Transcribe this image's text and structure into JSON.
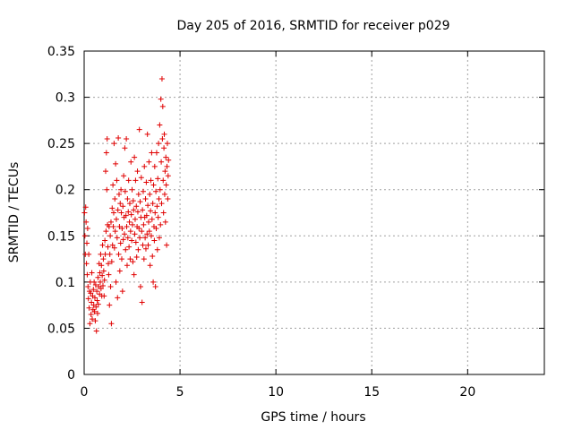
{
  "chart_data": {
    "type": "scatter",
    "title": "Day 205 of 2016, SRMTID for receiver p029",
    "xlabel": "GPS time / hours",
    "ylabel": "SRMTID / TECUs",
    "xlim": [
      0,
      24
    ],
    "ylim": [
      0,
      0.35
    ],
    "grid": true,
    "marker": "+",
    "color": "#e00000",
    "xticks": [
      0,
      5,
      10,
      15,
      20
    ],
    "xtick_labels": [
      "0",
      "5",
      "10",
      "15",
      "20"
    ],
    "yticks": [
      0,
      0.05,
      0.1,
      0.15,
      0.2,
      0.25,
      0.3,
      0.35
    ],
    "ytick_labels": [
      "0",
      "0.05",
      "0.1",
      "0.15",
      "0.2",
      "0.25",
      "0.3",
      "0.35"
    ],
    "series": [
      {
        "name": "SRMTID",
        "points": [
          [
            0.02,
            0.175
          ],
          [
            0.04,
            0.15
          ],
          [
            0.06,
            0.13
          ],
          [
            0.08,
            0.181
          ],
          [
            0.1,
            0.165
          ],
          [
            0.12,
            0.12
          ],
          [
            0.14,
            0.142
          ],
          [
            0.16,
            0.108
          ],
          [
            0.18,
            0.158
          ],
          [
            0.2,
            0.095
          ],
          [
            0.22,
            0.082
          ],
          [
            0.24,
            0.13
          ],
          [
            0.26,
            0.072
          ],
          [
            0.28,
            0.09
          ],
          [
            0.3,
            0.055
          ],
          [
            0.32,
            0.1
          ],
          [
            0.34,
            0.088
          ],
          [
            0.36,
            0.065
          ],
          [
            0.38,
            0.078
          ],
          [
            0.4,
            0.11
          ],
          [
            0.42,
            0.06
          ],
          [
            0.44,
            0.085
          ],
          [
            0.46,
            0.07
          ],
          [
            0.48,
            0.092
          ],
          [
            0.5,
            0.075
          ],
          [
            0.52,
            0.1
          ],
          [
            0.54,
            0.068
          ],
          [
            0.56,
            0.083
          ],
          [
            0.58,
            0.058
          ],
          [
            0.6,
            0.097
          ],
          [
            0.62,
            0.073
          ],
          [
            0.64,
            0.047
          ],
          [
            0.66,
            0.09
          ],
          [
            0.68,
            0.08
          ],
          [
            0.7,
            0.066
          ],
          [
            0.72,
            0.105
          ],
          [
            0.74,
            0.076
          ],
          [
            0.76,
            0.095
          ],
          [
            0.78,
            0.12
          ],
          [
            0.8,
            0.087
          ],
          [
            0.82,
            0.11
          ],
          [
            0.84,
            0.1
          ],
          [
            0.86,
            0.13
          ],
          [
            0.88,
            0.093
          ],
          [
            0.9,
            0.118
          ],
          [
            0.92,
            0.085
          ],
          [
            0.94,
            0.107
          ],
          [
            0.96,
            0.14
          ],
          [
            0.98,
            0.096
          ],
          [
            1.0,
            0.125
          ],
          [
            1.02,
            0.112
          ],
          [
            1.04,
            0.085
          ],
          [
            1.06,
            0.102
          ],
          [
            1.08,
            0.145
          ],
          [
            1.1,
            0.13
          ],
          [
            1.12,
            0.22
          ],
          [
            1.14,
            0.155
          ],
          [
            1.16,
            0.24
          ],
          [
            1.18,
            0.2
          ],
          [
            1.2,
            0.255
          ],
          [
            1.22,
            0.162
          ],
          [
            1.24,
            0.138
          ],
          [
            1.26,
            0.12
          ],
          [
            1.28,
            0.108
          ],
          [
            1.3,
            0.16
          ],
          [
            1.32,
            0.075
          ],
          [
            1.34,
            0.13
          ],
          [
            1.36,
            0.15
          ],
          [
            1.38,
            0.095
          ],
          [
            1.4,
            0.165
          ],
          [
            1.42,
            0.055
          ],
          [
            1.44,
            0.122
          ],
          [
            1.46,
            0.18
          ],
          [
            1.48,
            0.14
          ],
          [
            1.5,
            0.205
          ],
          [
            1.52,
            0.16
          ],
          [
            1.54,
            0.175
          ],
          [
            1.56,
            0.25
          ],
          [
            1.58,
            0.137
          ],
          [
            1.6,
            0.19
          ],
          [
            1.62,
            0.155
          ],
          [
            1.64,
            0.228
          ],
          [
            1.66,
            0.1
          ],
          [
            1.68,
            0.168
          ],
          [
            1.7,
            0.21
          ],
          [
            1.72,
            0.148
          ],
          [
            1.74,
            0.083
          ],
          [
            1.76,
            0.178
          ],
          [
            1.78,
            0.256
          ],
          [
            1.8,
            0.13
          ],
          [
            1.82,
            0.195
          ],
          [
            1.84,
            0.16
          ],
          [
            1.86,
            0.112
          ],
          [
            1.88,
            0.185
          ],
          [
            1.9,
            0.142
          ],
          [
            1.92,
            0.2
          ],
          [
            1.94,
            0.175
          ],
          [
            1.96,
            0.125
          ],
          [
            1.98,
            0.158
          ],
          [
            2.0,
            0.09
          ],
          [
            2.02,
            0.182
          ],
          [
            2.04,
            0.146
          ],
          [
            2.06,
            0.215
          ],
          [
            2.08,
            0.17
          ],
          [
            2.1,
            0.152
          ],
          [
            2.12,
            0.245
          ],
          [
            2.14,
            0.198
          ],
          [
            2.16,
            0.135
          ],
          [
            2.18,
            0.172
          ],
          [
            2.2,
            0.255
          ],
          [
            2.22,
            0.16
          ],
          [
            2.24,
            0.118
          ],
          [
            2.26,
            0.19
          ],
          [
            2.28,
            0.148
          ],
          [
            2.3,
            0.176
          ],
          [
            2.32,
            0.21
          ],
          [
            2.34,
            0.138
          ],
          [
            2.36,
            0.165
          ],
          [
            2.38,
            0.185
          ],
          [
            2.4,
            0.125
          ],
          [
            2.42,
            0.155
          ],
          [
            2.44,
            0.23
          ],
          [
            2.46,
            0.173
          ],
          [
            2.48,
            0.145
          ],
          [
            2.5,
            0.2
          ],
          [
            2.52,
            0.162
          ],
          [
            2.54,
            0.122
          ],
          [
            2.56,
            0.188
          ],
          [
            2.58,
            0.178
          ],
          [
            2.6,
            0.108
          ],
          [
            2.62,
            0.235
          ],
          [
            2.64,
            0.152
          ],
          [
            2.66,
            0.168
          ],
          [
            2.68,
            0.21
          ],
          [
            2.7,
            0.143
          ],
          [
            2.72,
            0.182
          ],
          [
            2.74,
            0.127
          ],
          [
            2.76,
            0.16
          ],
          [
            2.78,
            0.22
          ],
          [
            2.8,
            0.176
          ],
          [
            2.82,
            0.135
          ],
          [
            2.84,
            0.195
          ],
          [
            2.86,
            0.158
          ],
          [
            2.88,
            0.265
          ],
          [
            2.9,
            0.148
          ],
          [
            2.92,
            0.187
          ],
          [
            2.94,
            0.095
          ],
          [
            2.96,
            0.17
          ],
          [
            2.98,
            0.213
          ],
          [
            3.0,
            0.155
          ],
          [
            3.02,
            0.078
          ],
          [
            3.04,
            0.178
          ],
          [
            3.06,
            0.14
          ],
          [
            3.08,
            0.198
          ],
          [
            3.1,
            0.162
          ],
          [
            3.12,
            0.125
          ],
          [
            3.14,
            0.225
          ],
          [
            3.16,
            0.17
          ],
          [
            3.18,
            0.148
          ],
          [
            3.2,
            0.19
          ],
          [
            3.22,
            0.136
          ],
          [
            3.24,
            0.208
          ],
          [
            3.26,
            0.172
          ],
          [
            3.28,
            0.152
          ],
          [
            3.3,
            0.26
          ],
          [
            3.32,
            0.183
          ],
          [
            3.34,
            0.14
          ],
          [
            3.36,
            0.165
          ],
          [
            3.38,
            0.23
          ],
          [
            3.4,
            0.155
          ],
          [
            3.42,
            0.195
          ],
          [
            3.44,
            0.118
          ],
          [
            3.46,
            0.177
          ],
          [
            3.48,
            0.21
          ],
          [
            3.5,
            0.15
          ],
          [
            3.52,
            0.24
          ],
          [
            3.54,
            0.168
          ],
          [
            3.56,
            0.128
          ],
          [
            3.58,
            0.185
          ],
          [
            3.6,
            0.1
          ],
          [
            3.62,
            0.205
          ],
          [
            3.64,
            0.16
          ],
          [
            3.66,
            0.145
          ],
          [
            3.68,
            0.225
          ],
          [
            3.7,
            0.175
          ],
          [
            3.72,
            0.095
          ],
          [
            3.74,
            0.198
          ],
          [
            3.76,
            0.158
          ],
          [
            3.78,
            0.24
          ],
          [
            3.8,
            0.182
          ],
          [
            3.82,
            0.135
          ],
          [
            3.84,
            0.212
          ],
          [
            3.86,
            0.17
          ],
          [
            3.88,
            0.25
          ],
          [
            3.9,
            0.19
          ],
          [
            3.92,
            0.148
          ],
          [
            3.94,
            0.27
          ],
          [
            3.96,
            0.2
          ],
          [
            3.98,
            0.162
          ],
          [
            4.0,
            0.298
          ],
          [
            4.02,
            0.23
          ],
          [
            4.04,
            0.185
          ],
          [
            4.06,
            0.32
          ],
          [
            4.08,
            0.255
          ],
          [
            4.1,
            0.29
          ],
          [
            4.12,
            0.21
          ],
          [
            4.14,
            0.175
          ],
          [
            4.16,
            0.245
          ],
          [
            4.18,
            0.26
          ],
          [
            4.2,
            0.195
          ],
          [
            4.22,
            0.22
          ],
          [
            4.24,
            0.165
          ],
          [
            4.26,
            0.235
          ],
          [
            4.28,
            0.205
          ],
          [
            4.3,
            0.14
          ],
          [
            4.32,
            0.225
          ],
          [
            4.34,
            0.25
          ],
          [
            4.36,
            0.19
          ],
          [
            4.38,
            0.215
          ],
          [
            4.4,
            0.232
          ]
        ]
      }
    ]
  }
}
